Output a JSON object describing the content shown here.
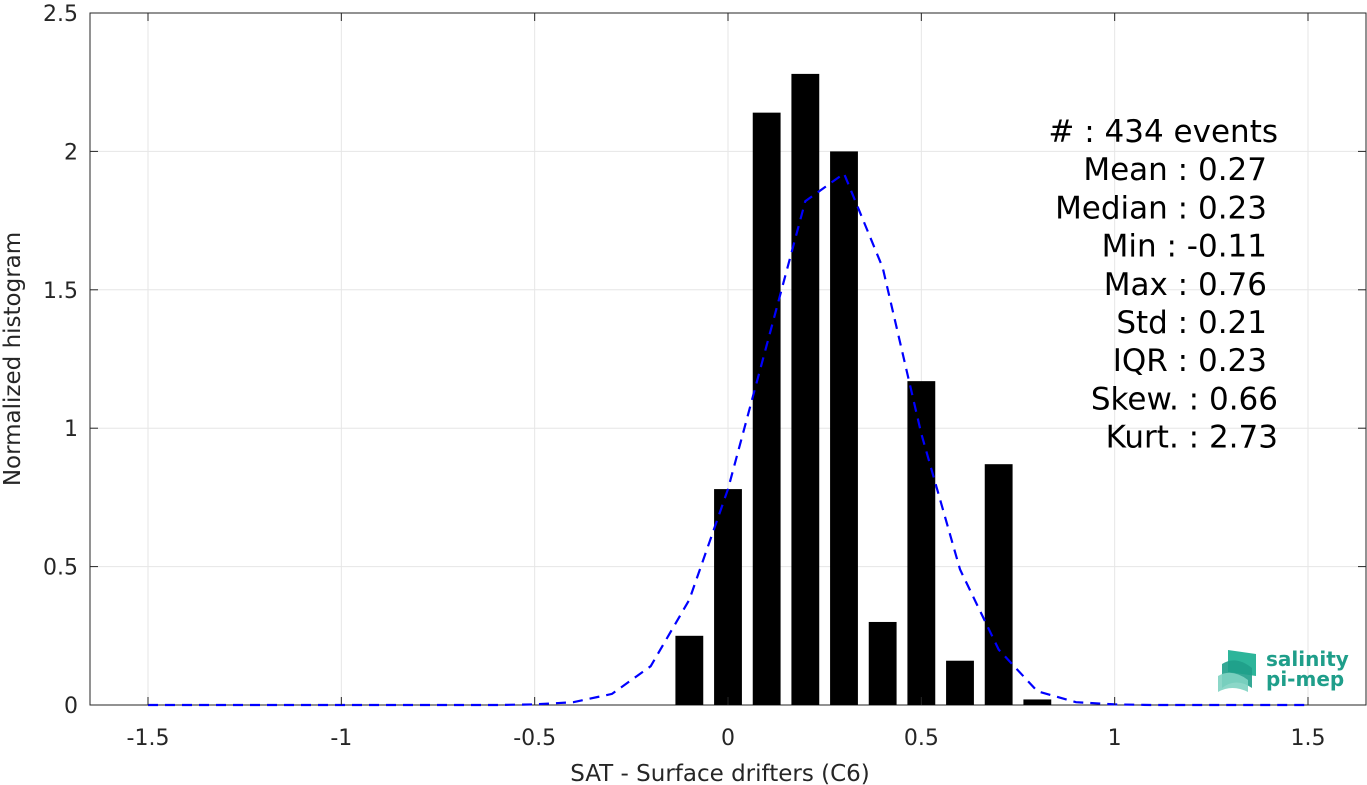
{
  "chart_data": {
    "type": "bar",
    "xlabel": "SAT - Surface drifters (C6)",
    "ylabel": "Normalized histogram",
    "xlim": [
      -1.65,
      1.65
    ],
    "ylim": [
      0,
      2.5
    ],
    "x_ticks": [
      -1.5,
      -1,
      -0.5,
      0,
      0.5,
      1,
      1.5
    ],
    "x_tick_labels": [
      "-1.5",
      "-1",
      "-0.5",
      "0",
      "0.5",
      "1",
      "1.5"
    ],
    "y_ticks": [
      0,
      0.5,
      1,
      1.5,
      2,
      2.5
    ],
    "y_tick_labels": [
      "0",
      "0.5",
      "1",
      "1.5",
      "2",
      "2.5"
    ],
    "grid": true,
    "bar_width": 0.072,
    "bars": {
      "x": [
        -0.1,
        0.0,
        0.1,
        0.2,
        0.3,
        0.4,
        0.5,
        0.6,
        0.7,
        0.8
      ],
      "values": [
        0.25,
        0.78,
        2.14,
        2.28,
        2.0,
        0.3,
        1.17,
        0.16,
        0.87,
        0.02
      ],
      "color": "#000000"
    },
    "fit_curve": {
      "style": "dashed",
      "color": "#0000ff",
      "x": [
        -1.5,
        -1.4,
        -1.3,
        -1.2,
        -1.1,
        -1.0,
        -0.9,
        -0.8,
        -0.7,
        -0.6,
        -0.5,
        -0.4,
        -0.3,
        -0.2,
        -0.1,
        0.0,
        0.1,
        0.2,
        0.3,
        0.4,
        0.5,
        0.6,
        0.7,
        0.8,
        0.9,
        1.0,
        1.1,
        1.2,
        1.3,
        1.4,
        1.5
      ],
      "y": [
        0,
        0,
        0,
        0,
        0,
        0,
        0,
        0,
        0,
        0,
        0.002,
        0.01,
        0.04,
        0.14,
        0.38,
        0.78,
        1.3,
        1.82,
        1.92,
        1.58,
        0.98,
        0.49,
        0.2,
        0.05,
        0.01,
        0.002,
        0,
        0,
        0,
        0,
        0
      ]
    },
    "stats_annotation": [
      {
        "label": "#",
        "value": ": 434 events"
      },
      {
        "label": "Mean",
        "value": ": 0.27"
      },
      {
        "label": "Median",
        "value": ": 0.23"
      },
      {
        "label": "Min",
        "value": ": -0.11"
      },
      {
        "label": "Max",
        "value": ": 0.76"
      },
      {
        "label": "Std",
        "value": ": 0.21"
      },
      {
        "label": "IQR",
        "value": ": 0.23"
      },
      {
        "label": "Skew.",
        "value": ": 0.66"
      },
      {
        "label": "Kurt.",
        "value": ": 2.73"
      }
    ]
  },
  "logo": {
    "line1": "salinity",
    "line2": "pi-mep",
    "color": "#1f9e8a"
  }
}
